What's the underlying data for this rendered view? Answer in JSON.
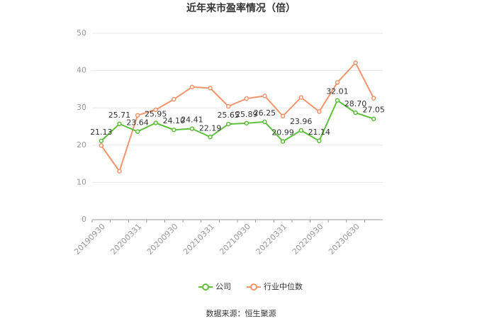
{
  "chart_data": {
    "type": "line",
    "title": "近年来市盈率情况（倍）",
    "categories": [
      "20190930",
      null,
      "20200331",
      null,
      "20200930",
      null,
      "20210331",
      null,
      "20210930",
      null,
      "20220331",
      null,
      "20220930",
      null,
      "20230630",
      null
    ],
    "series": [
      {
        "name": "公司",
        "color": "#5dbf3a",
        "values": [
          21.13,
          25.71,
          23.64,
          25.95,
          24.1,
          24.41,
          22.19,
          25.65,
          25.89,
          26.25,
          20.99,
          23.96,
          21.14,
          32.01,
          28.7,
          27.05
        ],
        "value_labels": [
          "21.13",
          "25.71",
          "23.64",
          "25.95",
          "24.10",
          "24.41",
          "22.19",
          "25.65",
          "25.89",
          "26.25",
          "20.99",
          "23.96",
          "21.14",
          "32.01",
          "28.70",
          "27.05"
        ]
      },
      {
        "name": "行业中位数",
        "color": "#f3956c",
        "values": [
          19.9,
          13.0,
          28.0,
          29.5,
          32.3,
          35.6,
          35.3,
          30.4,
          32.5,
          33.2,
          27.8,
          32.8,
          29.0,
          36.8,
          42.1,
          32.6
        ]
      }
    ],
    "ylim": [
      0,
      50
    ],
    "yticks": [
      0,
      10,
      20,
      30,
      40,
      50
    ],
    "grid": true,
    "source": "数据来源：恒生聚源"
  }
}
